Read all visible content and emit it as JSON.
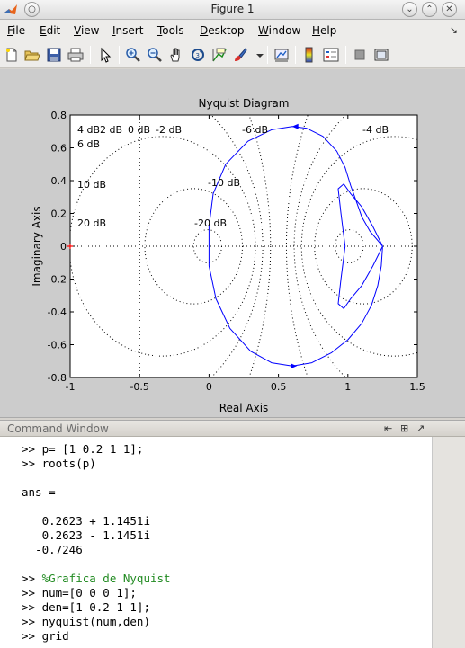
{
  "window": {
    "title": "Figure 1",
    "buttons": [
      "minimize",
      "maximize",
      "close"
    ]
  },
  "menu": [
    {
      "label": "File",
      "mnemonic": "F",
      "rest": "ile"
    },
    {
      "label": "Edit",
      "mnemonic": "E",
      "rest": "dit"
    },
    {
      "label": "View",
      "mnemonic": "V",
      "rest": "iew"
    },
    {
      "label": "Insert",
      "mnemonic": "I",
      "rest": "nsert"
    },
    {
      "label": "Tools",
      "mnemonic": "T",
      "rest": "ools"
    },
    {
      "label": "Desktop",
      "mnemonic": "D",
      "rest": "esktop"
    },
    {
      "label": "Window",
      "mnemonic": "W",
      "rest": "indow"
    },
    {
      "label": "Help",
      "mnemonic": "H",
      "rest": "elp"
    }
  ],
  "toolbar": {
    "icons": [
      "new-figure-icon",
      "open-file-icon",
      "save-icon",
      "print-icon",
      "edit-plot-arrow-icon",
      "zoom-in-icon",
      "zoom-out-icon",
      "pan-hand-icon",
      "rotate-3d-icon",
      "data-cursor-icon",
      "brush-icon",
      "link-plot-icon",
      "colorbar-icon",
      "legend-icon",
      "hide-plot-tools-icon",
      "show-plot-tools-icon"
    ]
  },
  "chart_data": {
    "type": "line",
    "title": "Nyquist Diagram",
    "xlabel": "Real Axis",
    "ylabel": "Imaginary Axis",
    "xlim": [
      -1,
      1.5
    ],
    "ylim": [
      -0.8,
      0.8
    ],
    "xticks": [
      "-1",
      "-0.5",
      "0",
      "0.5",
      "1",
      "1.5"
    ],
    "yticks": [
      "0.8",
      "0.6",
      "0.4",
      "0.2",
      "0",
      "-0.2",
      "-0.4",
      "-0.6",
      "-0.8"
    ],
    "grid": true,
    "critical_point": [
      -1,
      0
    ],
    "series_color": "#0000ff",
    "series": [
      {
        "x": [
          1.25,
          1.24,
          1.215,
          1.17,
          1.1,
          1.0,
          0.88,
          0.74,
          0.6,
          0.45,
          0.3,
          0.15,
          0.05,
          0.0,
          0.0,
          0.03,
          0.12,
          0.28,
          0.45,
          0.6,
          0.7,
          0.82,
          0.92,
          0.98,
          1.02,
          1.05,
          1.1,
          1.16,
          1.22,
          1.25
        ],
        "y": [
          0.0,
          -0.12,
          -0.24,
          -0.36,
          -0.47,
          -0.57,
          -0.65,
          -0.71,
          -0.73,
          -0.71,
          -0.64,
          -0.5,
          -0.32,
          -0.12,
          0.12,
          0.32,
          0.5,
          0.64,
          0.71,
          0.73,
          0.72,
          0.67,
          0.58,
          0.48,
          0.37,
          0.3,
          0.18,
          0.09,
          0.03,
          0.0
        ]
      }
    ],
    "grid_labels": [
      "4 dB",
      "2 dB",
      "0 dB",
      "-2 dB",
      "-6 dB",
      "-4 dB",
      "6 dB",
      "10 dB",
      "-10 dB",
      "20 dB",
      "-20 dB"
    ]
  },
  "command_window": {
    "title": "Command Window",
    "lines": [
      {
        "text": ">> p= [1 0.2 1 1];",
        "kind": "cmd"
      },
      {
        "text": ">> roots(p)",
        "kind": "cmd"
      },
      {
        "text": "",
        "kind": "out"
      },
      {
        "text": "ans =",
        "kind": "out"
      },
      {
        "text": "",
        "kind": "out"
      },
      {
        "text": "   0.2623 + 1.1451i",
        "kind": "out"
      },
      {
        "text": "   0.2623 - 1.1451i",
        "kind": "out"
      },
      {
        "text": "  -0.7246",
        "kind": "out"
      },
      {
        "text": "",
        "kind": "out"
      },
      {
        "text": "%Grafica de Nyquist",
        "kind": "comment",
        "prompt": ">> "
      },
      {
        "text": ">> num=[0 0 0 1];",
        "kind": "cmd"
      },
      {
        "text": ">> den=[1 0.2 1 1];",
        "kind": "cmd"
      },
      {
        "text": ">> nyquist(num,den)",
        "kind": "cmd"
      },
      {
        "text": ">> grid",
        "kind": "cmd"
      }
    ]
  }
}
